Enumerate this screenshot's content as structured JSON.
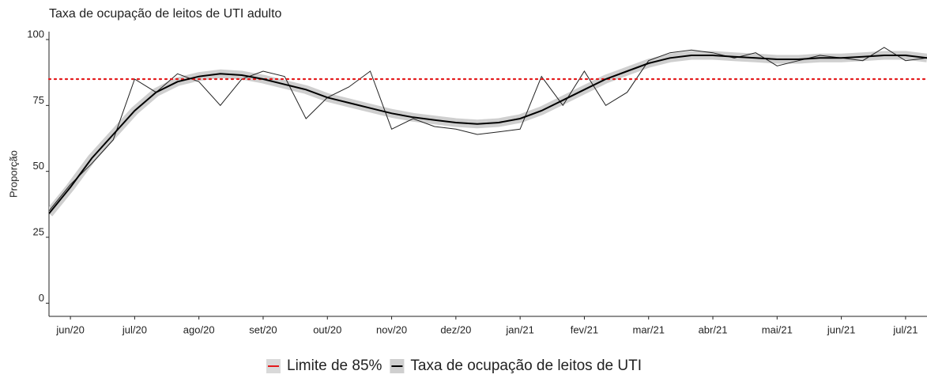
{
  "chart_data": {
    "type": "line",
    "title": "Taxa de ocupação de leitos de UTI adulto",
    "y_label": "Proporção",
    "categories": [
      null,
      "jun/20",
      null,
      null,
      "jul/20",
      null,
      null,
      "ago/20",
      null,
      null,
      "set/20",
      null,
      null,
      "out/20",
      null,
      null,
      "nov/20",
      null,
      null,
      "dez/20",
      null,
      null,
      "jan/21",
      null,
      null,
      "fev/21",
      null,
      null,
      "mar/21",
      null,
      null,
      "abr/21",
      null,
      null,
      "mai/21",
      null,
      null,
      "jun/21",
      null,
      null,
      "jul/21",
      null
    ],
    "series": [
      {
        "color": "#222222",
        "values": [
          35,
          45,
          53,
          62,
          85,
          80,
          87,
          84,
          75,
          85,
          88,
          86,
          70,
          78,
          82,
          88,
          66,
          70,
          67,
          66,
          64,
          65,
          66,
          86,
          75,
          88,
          75,
          80,
          92,
          95,
          96,
          95,
          93,
          95,
          90,
          92,
          94,
          93,
          92,
          97,
          92,
          93
        ]
      },
      {
        "name": "Taxa de ocupação de leitos de UTI",
        "color": "#000000",
        "band_color": "#cfcfcf",
        "values": [
          34,
          44,
          55,
          64,
          73,
          80,
          84,
          86,
          87,
          86.5,
          85,
          83,
          81,
          78,
          76,
          74,
          72,
          70.5,
          69.5,
          68.5,
          68,
          68.5,
          70,
          73,
          77,
          81,
          85,
          88,
          91,
          93,
          94,
          94,
          93.5,
          93,
          92.5,
          92.5,
          93,
          93,
          93.5,
          94,
          94,
          93
        ]
      }
    ],
    "hline": {
      "name": "Limite de 85%",
      "value": 85,
      "color": "#e41a1c"
    },
    "ylim": [
      -5,
      103
    ],
    "yticks": [
      0,
      25,
      50,
      75,
      100
    ],
    "grid": false,
    "legend": "bottom"
  }
}
